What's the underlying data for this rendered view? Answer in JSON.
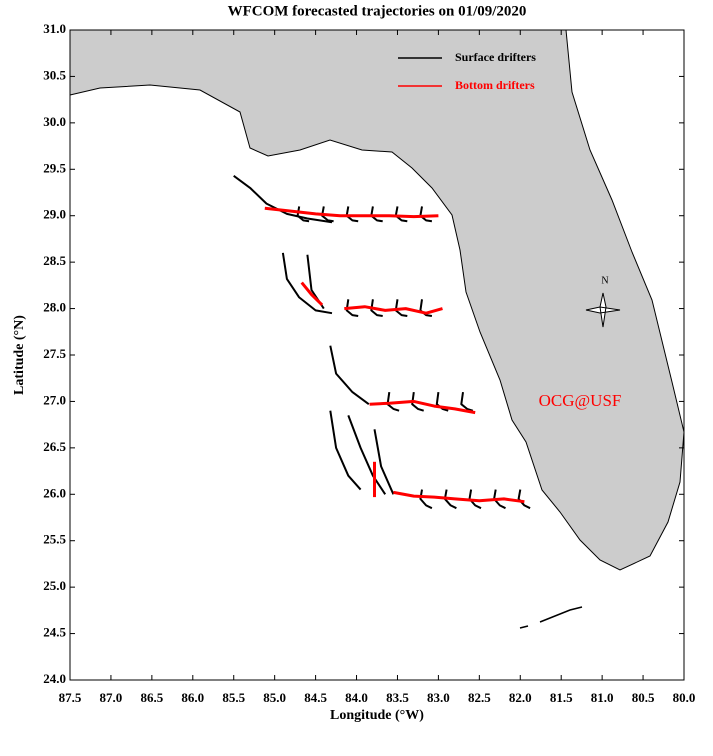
{
  "chart_data": {
    "type": "line",
    "title": "WFCOM forecasted trajectories on 01/09/2020",
    "x_label": "Longitude (°W)",
    "y_label": "Latitude (°N)",
    "xlim": [
      87.5,
      80.0
    ],
    "ylim": [
      24.0,
      31.0
    ],
    "xticks": [
      87.5,
      {
        "value": 87,
        "label": "87.0"
      },
      86.5,
      {
        "value": 86,
        "label": "86.0"
      },
      85.5,
      {
        "value": 85,
        "label": "85.0"
      },
      84.5,
      {
        "value": 84,
        "label": "84.0"
      },
      83.5,
      {
        "value": 83,
        "label": "83.0"
      },
      82.5,
      {
        "value": 82,
        "label": "82.0"
      },
      81.5,
      {
        "value": 81,
        "label": "81.0"
      },
      80.5,
      {
        "value": 80,
        "label": "80.0"
      }
    ],
    "yticks": [
      {
        "value": 24,
        "label": "24.0"
      },
      24.5,
      {
        "value": 25,
        "label": "25.0"
      },
      25.5,
      {
        "value": 26,
        "label": "26.0"
      },
      26.5,
      {
        "value": 27,
        "label": "27.0"
      },
      27.5,
      {
        "value": 28,
        "label": "28.0"
      },
      28.5,
      {
        "value": 29,
        "label": "29.0"
      },
      29.5,
      {
        "value": 30,
        "label": "30.0"
      },
      30.5,
      {
        "value": 31,
        "label": "31.0"
      }
    ],
    "annotations": [
      "OCG@USF",
      "N"
    ],
    "series": [
      {
        "name": "Surface drifters",
        "color": "#000000",
        "tracks": [
          {
            "x": [
              85.5,
              85.3,
              85.1,
              84.85,
              84.6,
              84.3
            ],
            "values": [
              29.43,
              29.3,
              29.13,
              29.02,
              28.97,
              28.93
            ]
          },
          {
            "x": [
              84.7,
              84.72,
              84.65,
              84.58
            ],
            "values": [
              29.1,
              29.0,
              28.95,
              28.94
            ]
          },
          {
            "x": [
              84.4,
              84.42,
              84.35,
              84.28
            ],
            "values": [
              29.1,
              29.0,
              28.95,
              28.94
            ]
          },
          {
            "x": [
              84.1,
              84.12,
              84.05,
              83.98
            ],
            "values": [
              29.1,
              29.0,
              28.95,
              28.94
            ]
          },
          {
            "x": [
              83.8,
              83.82,
              83.75,
              83.68
            ],
            "values": [
              29.1,
              29.0,
              28.95,
              28.94
            ]
          },
          {
            "x": [
              83.5,
              83.52,
              83.45,
              83.38
            ],
            "values": [
              29.1,
              29.0,
              28.95,
              28.94
            ]
          },
          {
            "x": [
              83.2,
              83.22,
              83.15,
              83.08
            ],
            "values": [
              29.1,
              29.0,
              28.95,
              28.94
            ]
          },
          {
            "x": [
              84.9,
              84.85,
              84.7,
              84.5,
              84.3
            ],
            "values": [
              28.6,
              28.32,
              28.12,
              27.98,
              27.95
            ]
          },
          {
            "x": [
              84.6,
              84.55,
              84.4
            ],
            "values": [
              28.58,
              28.2,
              28.0
            ]
          },
          {
            "x": [
              84.1,
              84.12,
              84.05,
              83.98
            ],
            "values": [
              28.1,
              27.98,
              27.93,
              27.92
            ]
          },
          {
            "x": [
              83.8,
              83.82,
              83.75,
              83.68
            ],
            "values": [
              28.1,
              27.98,
              27.93,
              27.92
            ]
          },
          {
            "x": [
              83.5,
              83.52,
              83.45,
              83.38
            ],
            "values": [
              28.1,
              27.98,
              27.93,
              27.92
            ]
          },
          {
            "x": [
              83.2,
              83.22,
              83.15,
              83.08
            ],
            "values": [
              28.1,
              27.98,
              27.93,
              27.92
            ]
          },
          {
            "x": [
              84.32,
              84.25,
              84.05,
              83.85
            ],
            "values": [
              27.6,
              27.3,
              27.1,
              26.97
            ]
          },
          {
            "x": [
              83.6,
              83.62,
              83.55,
              83.48
            ],
            "values": [
              27.1,
              26.97,
              26.92,
              26.9
            ]
          },
          {
            "x": [
              83.3,
              83.32,
              83.25,
              83.18
            ],
            "values": [
              27.1,
              26.97,
              26.92,
              26.9
            ]
          },
          {
            "x": [
              83.0,
              83.02,
              82.95,
              82.88
            ],
            "values": [
              27.1,
              26.97,
              26.92,
              26.9
            ]
          },
          {
            "x": [
              82.7,
              82.72,
              82.65,
              82.58
            ],
            "values": [
              27.1,
              26.97,
              26.92,
              26.9
            ]
          },
          {
            "x": [
              84.32,
              84.25,
              84.1,
              83.95
            ],
            "values": [
              26.9,
              26.5,
              26.2,
              26.05
            ]
          },
          {
            "x": [
              84.1,
              83.95,
              83.8,
              83.65
            ],
            "values": [
              26.85,
              26.5,
              26.2,
              26.0
            ]
          },
          {
            "x": [
              83.78,
              83.7,
              83.55
            ],
            "values": [
              26.7,
              26.3,
              26.0
            ]
          },
          {
            "x": [
              83.2,
              83.22,
              83.15,
              83.08
            ],
            "values": [
              26.05,
              25.95,
              25.88,
              25.85
            ]
          },
          {
            "x": [
              82.9,
              82.92,
              82.85,
              82.78
            ],
            "values": [
              26.05,
              25.95,
              25.88,
              25.85
            ]
          },
          {
            "x": [
              82.6,
              82.62,
              82.55,
              82.48
            ],
            "values": [
              26.05,
              25.95,
              25.88,
              25.85
            ]
          },
          {
            "x": [
              82.3,
              82.32,
              82.25,
              82.18
            ],
            "values": [
              26.05,
              25.95,
              25.88,
              25.85
            ]
          },
          {
            "x": [
              82.0,
              82.02,
              81.95,
              81.88
            ],
            "values": [
              26.05,
              25.95,
              25.88,
              25.85
            ]
          }
        ]
      },
      {
        "name": "Bottom drifters",
        "color": "#ff0000",
        "tracks": [
          {
            "x": [
              85.12,
              84.8,
              84.5,
              84.2,
              83.9,
              83.6,
              83.3,
              83.0
            ],
            "values": [
              29.08,
              29.05,
              29.02,
              29.0,
              29.0,
              29.0,
              28.99,
              29.0
            ]
          },
          {
            "x": [
              84.67,
              84.55,
              84.42
            ],
            "values": [
              28.28,
              28.15,
              28.04
            ]
          },
          {
            "x": [
              84.15,
              83.9,
              83.65,
              83.4,
              83.15,
              82.95
            ],
            "values": [
              28.0,
              28.02,
              27.98,
              28.0,
              27.95,
              28.0
            ]
          },
          {
            "x": [
              83.84,
              83.6,
              83.3,
              83.05,
              82.8,
              82.55
            ],
            "values": [
              26.97,
              26.98,
              27.0,
              26.95,
              26.92,
              26.88
            ]
          },
          {
            "x": [
              83.78,
              83.78,
              83.78
            ],
            "values": [
              26.35,
              26.15,
              25.97
            ]
          },
          {
            "x": [
              83.55,
              83.3,
              83.05,
              82.8,
              82.5,
              82.2,
              81.95
            ],
            "values": [
              26.02,
              25.98,
              25.97,
              25.95,
              25.93,
              25.95,
              25.92
            ]
          }
        ]
      }
    ]
  }
}
